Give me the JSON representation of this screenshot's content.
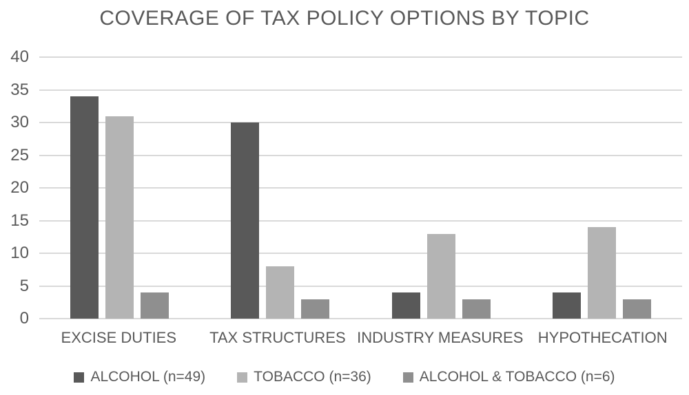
{
  "title": "COVERAGE OF TAX POLICY OPTIONS BY TOPIC",
  "colors": {
    "text": "#595959",
    "gridline": "#d9d9d9",
    "background": "#ffffff"
  },
  "chart_data": {
    "type": "bar",
    "title": "COVERAGE OF TAX POLICY OPTIONS BY TOPIC",
    "categories": [
      "EXCISE DUTIES",
      "TAX STRUCTURES",
      "INDUSTRY MEASURES",
      "HYPOTHECATION"
    ],
    "series": [
      {
        "name": "ALCOHOL (n=49)",
        "color": "#595959",
        "values": [
          34,
          30,
          4,
          4
        ]
      },
      {
        "name": "TOBACCO (n=36)",
        "color": "#b4b4b4",
        "values": [
          31,
          8,
          13,
          14
        ]
      },
      {
        "name": "ALCOHOL & TOBACCO (n=6)",
        "color": "#8f8f8f",
        "values": [
          4,
          3,
          3,
          3
        ]
      }
    ],
    "xlabel": "",
    "ylabel": "",
    "ylim": [
      0,
      40
    ],
    "ytick_step": 5,
    "yticks": [
      0,
      5,
      10,
      15,
      20,
      25,
      30,
      35,
      40
    ],
    "grid": true,
    "legend_position": "bottom"
  }
}
